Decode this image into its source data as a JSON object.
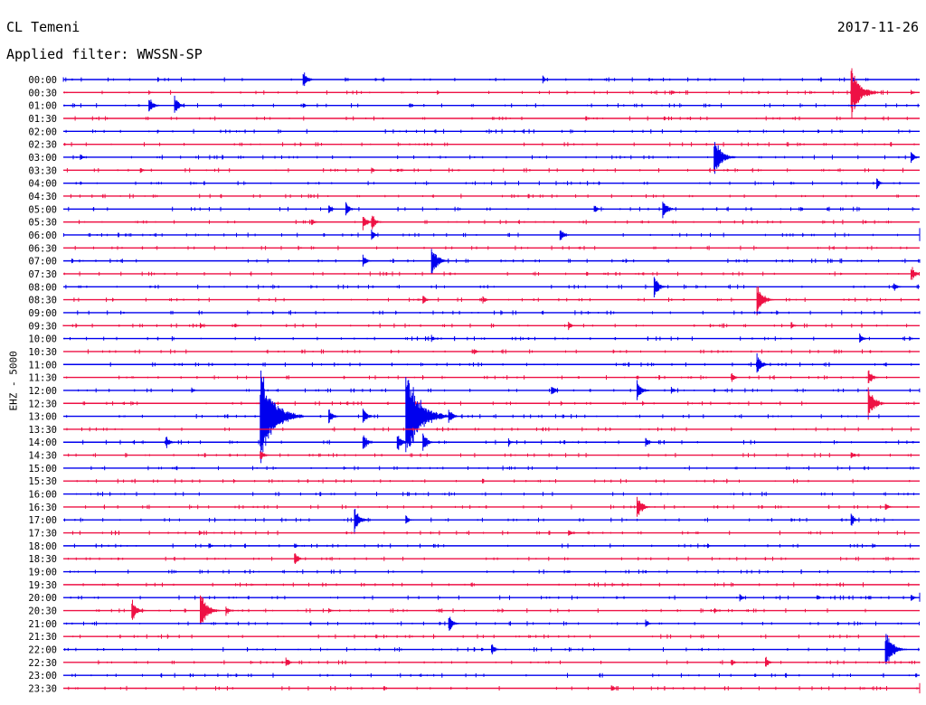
{
  "header": {
    "station": "CL Temeni",
    "date": "2017-11-26",
    "filter": "Applied filter: WWSSN-SP"
  },
  "axis": {
    "ylabel": "EHZ - 5000"
  },
  "colors": {
    "blue": "#0000ee",
    "red": "#ee1144"
  },
  "chart_data": {
    "type": "line",
    "title": "",
    "xlabel": "",
    "ylabel": "EHZ - 5000",
    "grid": false,
    "legend": "none",
    "row_interval_minutes": 30,
    "row_color_cycle": [
      "blue",
      "red"
    ],
    "rows": [
      "00:00",
      "00:30",
      "01:00",
      "01:30",
      "02:00",
      "02:30",
      "03:00",
      "03:30",
      "04:00",
      "04:30",
      "05:00",
      "05:30",
      "06:00",
      "06:30",
      "07:00",
      "07:30",
      "08:00",
      "08:30",
      "09:00",
      "09:30",
      "10:00",
      "10:30",
      "11:00",
      "11:30",
      "12:00",
      "12:30",
      "13:00",
      "13:30",
      "14:00",
      "14:30",
      "15:00",
      "15:30",
      "16:00",
      "16:30",
      "17:00",
      "17:30",
      "18:00",
      "18:30",
      "19:00",
      "19:30",
      "20:00",
      "20:30",
      "21:00",
      "21:30",
      "22:00",
      "22:30",
      "23:00",
      "23:30"
    ],
    "events": [
      {
        "row": 0,
        "t": 0.28,
        "a": 0.8
      },
      {
        "row": 0,
        "t": 0.56,
        "a": 0.35
      },
      {
        "row": 1,
        "t": 0.1,
        "a": 0.25
      },
      {
        "row": 1,
        "t": 0.71,
        "a": 0.3
      },
      {
        "row": 1,
        "t": 0.92,
        "a": 2.6
      },
      {
        "row": 1,
        "t": 0.99,
        "a": 0.3
      },
      {
        "row": 2,
        "t": 0.1,
        "a": 0.9
      },
      {
        "row": 2,
        "t": 0.13,
        "a": 0.9
      },
      {
        "row": 2,
        "t": 0.28,
        "a": 0.3
      },
      {
        "row": 4,
        "t": 0.11,
        "a": 0.2
      },
      {
        "row": 6,
        "t": 0.02,
        "a": 0.3
      },
      {
        "row": 6,
        "t": 0.76,
        "a": 1.9
      },
      {
        "row": 6,
        "t": 0.99,
        "a": 0.6
      },
      {
        "row": 7,
        "t": 0.09,
        "a": 0.3
      },
      {
        "row": 7,
        "t": 0.36,
        "a": 0.3
      },
      {
        "row": 7,
        "t": 0.39,
        "a": 0.25
      },
      {
        "row": 8,
        "t": 0.95,
        "a": 0.5
      },
      {
        "row": 10,
        "t": 0.31,
        "a": 0.5
      },
      {
        "row": 10,
        "t": 0.33,
        "a": 0.7
      },
      {
        "row": 10,
        "t": 0.62,
        "a": 0.5
      },
      {
        "row": 10,
        "t": 0.7,
        "a": 1.0
      },
      {
        "row": 11,
        "t": 0.35,
        "a": 0.8
      },
      {
        "row": 11,
        "t": 0.36,
        "a": 0.8
      },
      {
        "row": 11,
        "t": 0.29,
        "a": 0.4
      },
      {
        "row": 12,
        "t": 0.36,
        "a": 0.5
      },
      {
        "row": 12,
        "t": 0.58,
        "a": 0.7
      },
      {
        "row": 12,
        "t": 1.02,
        "a": 0.9
      },
      {
        "row": 14,
        "t": 0.35,
        "a": 0.6
      },
      {
        "row": 14,
        "t": 0.43,
        "a": 1.5
      },
      {
        "row": 14,
        "t": 1.04,
        "a": 0.3
      },
      {
        "row": 15,
        "t": 0.99,
        "a": 0.8
      },
      {
        "row": 16,
        "t": 0.69,
        "a": 1.0
      },
      {
        "row": 16,
        "t": 0.97,
        "a": 0.5
      },
      {
        "row": 17,
        "t": 0.42,
        "a": 0.5
      },
      {
        "row": 17,
        "t": 0.49,
        "a": 0.4
      },
      {
        "row": 17,
        "t": 0.81,
        "a": 1.5
      },
      {
        "row": 18,
        "t": 1.03,
        "a": 0.3
      },
      {
        "row": 19,
        "t": 0.16,
        "a": 0.3
      },
      {
        "row": 19,
        "t": 0.2,
        "a": 0.3
      },
      {
        "row": 19,
        "t": 0.59,
        "a": 0.4
      },
      {
        "row": 19,
        "t": 0.85,
        "a": 0.4
      },
      {
        "row": 20,
        "t": 0.43,
        "a": 0.4
      },
      {
        "row": 20,
        "t": 0.93,
        "a": 0.5
      },
      {
        "row": 21,
        "t": 0.48,
        "a": 0.3
      },
      {
        "row": 22,
        "t": 0.81,
        "a": 1.0
      },
      {
        "row": 23,
        "t": 0.08,
        "a": 0.2
      },
      {
        "row": 23,
        "t": 0.78,
        "a": 0.5
      },
      {
        "row": 23,
        "t": 0.94,
        "a": 0.8
      },
      {
        "row": 24,
        "t": 0.15,
        "a": 0.3
      },
      {
        "row": 24,
        "t": 0.57,
        "a": 0.6
      },
      {
        "row": 24,
        "t": 0.67,
        "a": 1.0
      },
      {
        "row": 24,
        "t": 0.71,
        "a": 0.4
      },
      {
        "row": 25,
        "t": 0.94,
        "a": 1.6
      },
      {
        "row": 26,
        "t": 0.23,
        "a": 4.5
      },
      {
        "row": 26,
        "t": 0.31,
        "a": 0.8
      },
      {
        "row": 26,
        "t": 0.35,
        "a": 0.9
      },
      {
        "row": 26,
        "t": 0.4,
        "a": 4.5
      },
      {
        "row": 26,
        "t": 0.45,
        "a": 0.8
      },
      {
        "row": 28,
        "t": 0.12,
        "a": 0.7
      },
      {
        "row": 28,
        "t": 0.35,
        "a": 0.9
      },
      {
        "row": 28,
        "t": 0.39,
        "a": 0.9
      },
      {
        "row": 28,
        "t": 0.42,
        "a": 0.9
      },
      {
        "row": 28,
        "t": 0.52,
        "a": 0.4
      },
      {
        "row": 28,
        "t": 0.68,
        "a": 0.5
      },
      {
        "row": 29,
        "t": 0.23,
        "a": 0.6
      },
      {
        "row": 29,
        "t": 0.92,
        "a": 0.4
      },
      {
        "row": 33,
        "t": 0.67,
        "a": 1.2
      },
      {
        "row": 33,
        "t": 0.96,
        "a": 0.4
      },
      {
        "row": 34,
        "t": 0.34,
        "a": 1.2
      },
      {
        "row": 34,
        "t": 0.4,
        "a": 0.5
      },
      {
        "row": 34,
        "t": 0.92,
        "a": 0.6
      },
      {
        "row": 35,
        "t": 0.59,
        "a": 0.4
      },
      {
        "row": 36,
        "t": 0.17,
        "a": 0.3
      },
      {
        "row": 36,
        "t": 0.27,
        "a": 0.3
      },
      {
        "row": 37,
        "t": 0.27,
        "a": 0.7
      },
      {
        "row": 40,
        "t": 0.79,
        "a": 0.4
      },
      {
        "row": 40,
        "t": 0.88,
        "a": 0.3
      },
      {
        "row": 40,
        "t": 0.99,
        "a": 0.4
      },
      {
        "row": 40,
        "t": 1.05,
        "a": 0.6
      },
      {
        "row": 41,
        "t": 0.08,
        "a": 1.1
      },
      {
        "row": 41,
        "t": 0.16,
        "a": 1.8
      },
      {
        "row": 41,
        "t": 0.19,
        "a": 0.5
      },
      {
        "row": 41,
        "t": 0.31,
        "a": 0.3
      },
      {
        "row": 41,
        "t": 0.76,
        "a": 0.3
      },
      {
        "row": 42,
        "t": 0.45,
        "a": 0.8
      },
      {
        "row": 42,
        "t": 0.68,
        "a": 0.4
      },
      {
        "row": 44,
        "t": 0.5,
        "a": 0.6
      },
      {
        "row": 44,
        "t": 0.96,
        "a": 1.9
      },
      {
        "row": 45,
        "t": 0.26,
        "a": 0.5
      },
      {
        "row": 45,
        "t": 0.78,
        "a": 0.4
      },
      {
        "row": 45,
        "t": 0.82,
        "a": 0.6
      },
      {
        "row": 47,
        "t": 0.64,
        "a": 0.4
      },
      {
        "row": 47,
        "t": 1.05,
        "a": 0.7
      }
    ]
  }
}
